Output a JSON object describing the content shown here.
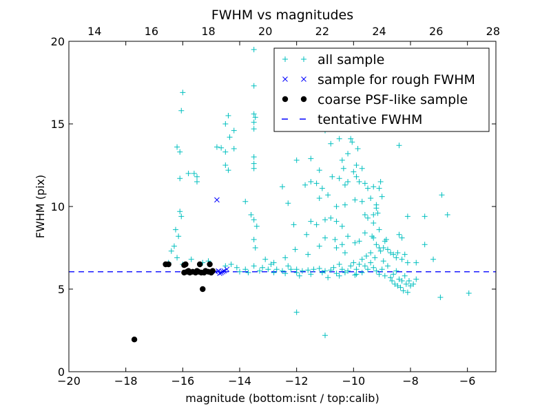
{
  "chart_data": {
    "type": "scatter",
    "title": "FWHM vs magnitudes",
    "xlabel": "magnitude (bottom:isnt / top:calib)",
    "ylabel": "FWHM (pix)",
    "xlim": [
      -20,
      -5
    ],
    "ylim": [
      0,
      20
    ],
    "top_xlim": [
      13.1,
      28.1
    ],
    "x_ticks": [
      -20,
      -18,
      -16,
      -14,
      -12,
      -10,
      -8,
      -6
    ],
    "x_tick_labels": [
      "−20",
      "−18",
      "−16",
      "−14",
      "−12",
      "−10",
      "−8",
      "−6"
    ],
    "y_ticks": [
      0,
      5,
      10,
      15,
      20
    ],
    "y_tick_labels": [
      "0",
      "5",
      "10",
      "15",
      "20"
    ],
    "top_ticks": [
      14,
      16,
      18,
      20,
      22,
      24,
      26,
      28
    ],
    "top_tick_labels": [
      "14",
      "16",
      "18",
      "20",
      "22",
      "24",
      "26",
      "28"
    ],
    "grid": false,
    "legend_position": "top-right",
    "reference_line": {
      "name": "tentative FWHM",
      "y": 6.05,
      "style": "dashed",
      "color": "#0000ff"
    },
    "series": [
      {
        "name": "all sample",
        "marker": "plus",
        "color": "#00bfbf",
        "points": [
          [
            -13.5,
            19.5
          ],
          [
            -13.5,
            17.3
          ],
          [
            -16,
            16.9
          ],
          [
            -16.05,
            15.8
          ],
          [
            -13.5,
            15.6
          ],
          [
            -13.45,
            15.4
          ],
          [
            -14.4,
            15.5
          ],
          [
            -13.5,
            15.1
          ],
          [
            -14.5,
            15
          ],
          [
            -14.2,
            14.6
          ],
          [
            -13.5,
            14.7
          ],
          [
            -14.35,
            14.2
          ],
          [
            -16.2,
            13.6
          ],
          [
            -16.1,
            13.3
          ],
          [
            -14.8,
            13.6
          ],
          [
            -14.65,
            13.55
          ],
          [
            -14.2,
            13.5
          ],
          [
            -14.5,
            13.3
          ],
          [
            -13.5,
            13
          ],
          [
            -13.5,
            12.6
          ],
          [
            -13.5,
            12.3
          ],
          [
            -14.5,
            12.5
          ],
          [
            -14.4,
            12.2
          ],
          [
            -15.6,
            12
          ],
          [
            -15.5,
            11.8
          ],
          [
            -15.8,
            12
          ],
          [
            -15.5,
            11.5
          ],
          [
            -16.1,
            11.7
          ],
          [
            -12,
            12.8
          ],
          [
            -11.5,
            12.9
          ],
          [
            -10.5,
            14.1
          ],
          [
            -10.8,
            13.8
          ],
          [
            -10.1,
            14.1
          ],
          [
            -10.05,
            13.9
          ],
          [
            -11,
            14.6
          ],
          [
            -10.2,
            13.2
          ],
          [
            -9.85,
            13.5
          ],
          [
            -10.4,
            12.8
          ],
          [
            -10.35,
            12.3
          ],
          [
            -9.9,
            12.5
          ],
          [
            -10,
            12.1
          ],
          [
            -9.9,
            11.8
          ],
          [
            -9.7,
            12.3
          ],
          [
            -11.2,
            12.2
          ],
          [
            -10.75,
            11.8
          ],
          [
            -10.5,
            11.7
          ],
          [
            -11.3,
            11.4
          ],
          [
            -11.5,
            11.5
          ],
          [
            -11.1,
            11.1
          ],
          [
            -11.7,
            11.3
          ],
          [
            -10.3,
            11.3
          ],
          [
            -10.2,
            11.5
          ],
          [
            -9.8,
            11.5
          ],
          [
            -9.6,
            11.4
          ],
          [
            -9.5,
            11.1
          ],
          [
            -9.3,
            11.2
          ],
          [
            -9.1,
            11.1
          ],
          [
            -9.05,
            11.5
          ],
          [
            -8.4,
            13.7
          ],
          [
            -12.5,
            11.2
          ],
          [
            -12.3,
            10.2
          ],
          [
            -11.2,
            10.5
          ],
          [
            -10.9,
            10.7
          ],
          [
            -10.6,
            10
          ],
          [
            -10.3,
            10.1
          ],
          [
            -9.95,
            10.4
          ],
          [
            -9.7,
            10.3
          ],
          [
            -9.4,
            10.5
          ],
          [
            -9.2,
            10.1
          ],
          [
            -9,
            10.6
          ],
          [
            -9.2,
            9.9
          ],
          [
            -9.15,
            9.6
          ],
          [
            -9.5,
            9.3
          ],
          [
            -9.3,
            9.5
          ],
          [
            -9.6,
            9.5
          ],
          [
            -9.3,
            9
          ],
          [
            -9.1,
            8.6
          ],
          [
            -9.35,
            8.2
          ],
          [
            -8.85,
            8
          ],
          [
            -8.4,
            8.3
          ],
          [
            -8.3,
            8.1
          ],
          [
            -8.1,
            9.4
          ],
          [
            -7.5,
            9.4
          ],
          [
            -6.9,
            10.7
          ],
          [
            -6.7,
            9.5
          ],
          [
            -13.8,
            10.3
          ],
          [
            -13.6,
            9.5
          ],
          [
            -13.5,
            9.2
          ],
          [
            -13.4,
            8.8
          ],
          [
            -13.5,
            8
          ],
          [
            -13.45,
            7.5
          ],
          [
            -12.1,
            8.9
          ],
          [
            -11.5,
            9.1
          ],
          [
            -11.3,
            8.9
          ],
          [
            -11,
            9.2
          ],
          [
            -10.8,
            9.3
          ],
          [
            -10.6,
            9.1
          ],
          [
            -10.4,
            8.8
          ],
          [
            -11.65,
            8.3
          ],
          [
            -11,
            8.1
          ],
          [
            -10.65,
            8
          ],
          [
            -10.4,
            7.7
          ],
          [
            -10.2,
            8.2
          ],
          [
            -9.95,
            7.8
          ],
          [
            -9.8,
            7.9
          ],
          [
            -9.6,
            8.4
          ],
          [
            -9.3,
            8.1
          ],
          [
            -9.2,
            7.7
          ],
          [
            -9.1,
            7.5
          ],
          [
            -9.05,
            7.3
          ],
          [
            -8.95,
            7.5
          ],
          [
            -8.9,
            7.9
          ],
          [
            -8.8,
            7.4
          ],
          [
            -8.7,
            7.2
          ],
          [
            -8.6,
            7.1
          ],
          [
            -8.5,
            6.9
          ],
          [
            -8.45,
            7.2
          ],
          [
            -8.3,
            6.8
          ],
          [
            -8.2,
            7.1
          ],
          [
            -8.1,
            6.6
          ],
          [
            -7.8,
            6.6
          ],
          [
            -7.5,
            7.7
          ],
          [
            -7.2,
            6.8
          ],
          [
            -6.95,
            4.5
          ],
          [
            -5.95,
            4.75
          ],
          [
            -16.1,
            9.7
          ],
          [
            -16.05,
            9.4
          ],
          [
            -16.25,
            8.6
          ],
          [
            -16.15,
            8.2
          ],
          [
            -16.3,
            7.6
          ],
          [
            -16.4,
            7.3
          ],
          [
            -16.5,
            6.6
          ],
          [
            -16.2,
            6.9
          ],
          [
            -16,
            6.5
          ],
          [
            -15.7,
            6.8
          ],
          [
            -15.3,
            6.6
          ],
          [
            -15.1,
            6.7
          ],
          [
            -14.5,
            6.4
          ],
          [
            -14.3,
            6.5
          ],
          [
            -14.1,
            6.3
          ],
          [
            -13.8,
            6.2
          ],
          [
            -13.5,
            6.4
          ],
          [
            -13.2,
            6.3
          ],
          [
            -13,
            6.2
          ],
          [
            -12.9,
            6.5
          ],
          [
            -12.7,
            6.2
          ],
          [
            -12.5,
            6.1
          ],
          [
            -12.3,
            6.4
          ],
          [
            -12.2,
            6.2
          ],
          [
            -12,
            6.2
          ],
          [
            -11.8,
            6.1
          ],
          [
            -11.6,
            6.15
          ],
          [
            -11.4,
            6.2
          ],
          [
            -11.2,
            6.25
          ],
          [
            -11,
            6.1
          ],
          [
            -10.8,
            6.15
          ],
          [
            -10.7,
            6.3
          ],
          [
            -10.5,
            6.5
          ],
          [
            -10.4,
            6.2
          ],
          [
            -10.2,
            6.1
          ],
          [
            -10.1,
            6.4
          ],
          [
            -10,
            6.6
          ],
          [
            -9.9,
            6.2
          ],
          [
            -9.8,
            6.5
          ],
          [
            -9.7,
            6.8
          ],
          [
            -9.6,
            6.4
          ],
          [
            -9.5,
            6.2
          ],
          [
            -9.4,
            6.6
          ],
          [
            -9.3,
            6.3
          ],
          [
            -9.2,
            6.1
          ],
          [
            -9.1,
            5.9
          ],
          [
            -9,
            6.2
          ],
          [
            -8.9,
            5.8
          ],
          [
            -8.8,
            6.4
          ],
          [
            -8.7,
            5.7
          ],
          [
            -8.65,
            5.5
          ],
          [
            -8.6,
            5.9
          ],
          [
            -8.55,
            5.3
          ],
          [
            -8.5,
            6.1
          ],
          [
            -8.45,
            5.2
          ],
          [
            -8.4,
            5.6
          ],
          [
            -8.35,
            5.1
          ],
          [
            -8.3,
            5.5
          ],
          [
            -8.25,
            4.9
          ],
          [
            -8.2,
            5.8
          ],
          [
            -8.15,
            5.3
          ],
          [
            -8.1,
            4.8
          ],
          [
            -8.05,
            5.5
          ],
          [
            -8,
            5.2
          ],
          [
            -7.9,
            5.3
          ],
          [
            -7.8,
            5.6
          ],
          [
            -9.55,
            7
          ],
          [
            -9.4,
            7.2
          ],
          [
            -9.25,
            6.9
          ],
          [
            -8.95,
            6.7
          ],
          [
            -10.3,
            7.2
          ],
          [
            -10.6,
            7.5
          ],
          [
            -11.2,
            7.6
          ],
          [
            -11.6,
            7.1
          ],
          [
            -12.05,
            7.4
          ],
          [
            -12.4,
            6.9
          ],
          [
            -12.8,
            6.6
          ],
          [
            -13.1,
            6.8
          ],
          [
            -12,
            3.6
          ],
          [
            -11,
            2.2
          ],
          [
            -14,
            6.05
          ],
          [
            -13.7,
            6
          ],
          [
            -13.3,
            6.1
          ],
          [
            -12.8,
            6
          ],
          [
            -12.4,
            5.95
          ],
          [
            -12,
            6
          ],
          [
            -11.5,
            5.9
          ],
          [
            -11.1,
            6
          ],
          [
            -10.6,
            5.95
          ],
          [
            -10.3,
            6
          ],
          [
            -9.9,
            5.9
          ],
          [
            -9.7,
            6
          ],
          [
            -11.9,
            5.8
          ],
          [
            -10.9,
            5.7
          ],
          [
            -10.5,
            5.8
          ],
          [
            -9.95,
            5.85
          ]
        ]
      },
      {
        "name": "sample for rough FWHM",
        "marker": "x",
        "color": "#0000ff",
        "points": [
          [
            -14.8,
            10.4
          ],
          [
            -14.85,
            6.05
          ],
          [
            -14.75,
            6.1
          ],
          [
            -14.65,
            6
          ],
          [
            -14.55,
            6.1
          ],
          [
            -14.45,
            6.2
          ],
          [
            -14.6,
            6.05
          ],
          [
            -14.7,
            5.95
          ]
        ]
      },
      {
        "name": "coarse PSF-like sample",
        "marker": "circle",
        "color": "#000000",
        "points": [
          [
            -17.7,
            1.95
          ],
          [
            -16.6,
            6.5
          ],
          [
            -16.5,
            6.5
          ],
          [
            -15.95,
            6.45
          ],
          [
            -15.9,
            6.5
          ],
          [
            -15.4,
            6.5
          ],
          [
            -15.05,
            6.5
          ],
          [
            -15.3,
            5
          ],
          [
            -15.95,
            6
          ],
          [
            -15.85,
            6.05
          ],
          [
            -15.75,
            6
          ],
          [
            -15.65,
            6.05
          ],
          [
            -15.55,
            6
          ],
          [
            -15.45,
            6.05
          ],
          [
            -15.35,
            6
          ],
          [
            -15.2,
            6.1
          ],
          [
            -15.1,
            6.05
          ],
          [
            -15,
            6
          ],
          [
            -14.95,
            6.1
          ],
          [
            -15.8,
            6.1
          ],
          [
            -15.5,
            6.1
          ],
          [
            -15.25,
            6
          ]
        ]
      }
    ]
  },
  "legend": {
    "entries": [
      {
        "label": "all sample",
        "marker": "plus",
        "color": "#00bfbf"
      },
      {
        "label": "sample for rough FWHM",
        "marker": "x",
        "color": "#0000ff"
      },
      {
        "label": "coarse PSF-like sample",
        "marker": "circle",
        "color": "#000000"
      },
      {
        "label": "tentative FWHM",
        "marker": "dash",
        "color": "#0000ff"
      }
    ]
  }
}
